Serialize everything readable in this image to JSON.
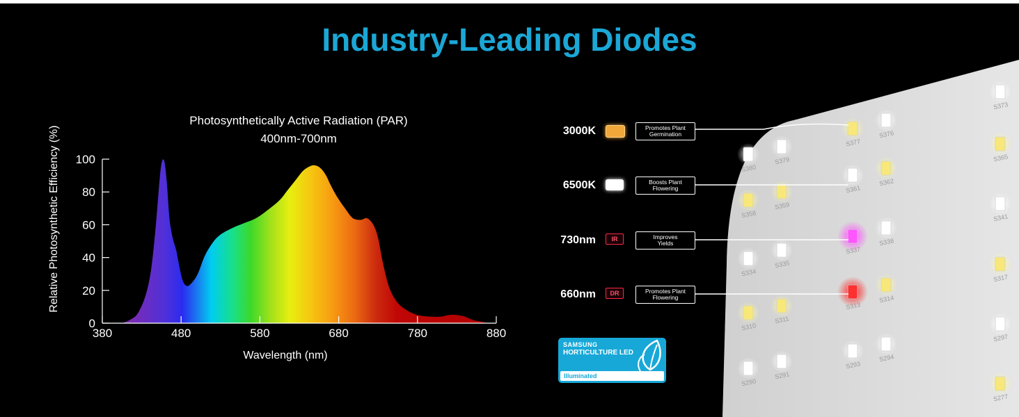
{
  "page": {
    "title": "Industry-Leading Diodes"
  },
  "chart_data": {
    "type": "area",
    "title": "Photosynthetically Active Radiation (PAR)",
    "subtitle": "400nm-700nm",
    "xlabel": "Wavelength (nm)",
    "ylabel": "Relative Photosynthetic Efficiency (%)",
    "xlim": [
      380,
      880
    ],
    "ylim": [
      0,
      100
    ],
    "xticks": [
      380,
      480,
      580,
      680,
      780,
      880
    ],
    "yticks": [
      0,
      20,
      40,
      60,
      80,
      100
    ],
    "x": [
      405,
      415,
      425,
      435,
      442,
      448,
      453,
      456,
      459,
      462,
      465,
      468,
      471,
      474,
      478,
      482,
      486,
      490,
      496,
      502,
      510,
      520,
      530,
      545,
      560,
      575,
      590,
      605,
      615,
      625,
      635,
      645,
      652,
      658,
      664,
      670,
      678,
      688,
      698,
      708,
      716,
      724,
      730,
      736,
      744,
      754,
      766,
      780,
      796,
      810,
      820,
      830,
      840,
      850,
      860,
      870
    ],
    "values": [
      0,
      2,
      6,
      17,
      33,
      60,
      89,
      99,
      98,
      85,
      65,
      55,
      49,
      44,
      34,
      26,
      23,
      23,
      26,
      31,
      41,
      49,
      54,
      58,
      61,
      64,
      69,
      75,
      81,
      87,
      93,
      96,
      96,
      94,
      90,
      84,
      77,
      70,
      64,
      63,
      64,
      60,
      52,
      37,
      22,
      13,
      8,
      5,
      4,
      4,
      5,
      5,
      4,
      2,
      1,
      0
    ]
  },
  "legend": [
    {
      "label": "3000K",
      "color": "#f0a83a",
      "description": [
        "Promotes Plant",
        "Germination"
      ]
    },
    {
      "label": "6500K",
      "color": "#ffffff",
      "description": [
        "Boosts Plant",
        "Flowering"
      ]
    },
    {
      "label": "730nm",
      "tag": "IR",
      "description": [
        "Improves",
        "Yields"
      ]
    },
    {
      "label": "660nm",
      "tag": "DR",
      "description": [
        "Promotes Plant",
        "Flowering"
      ]
    }
  ],
  "badge": {
    "line1": "SAMSUNG",
    "line2": "HORTICULTURE LED",
    "line3": "Illuminated",
    "color": "#18a8d8"
  },
  "board_labels": [
    "S373",
    "S365",
    "S341",
    "S317",
    "S297",
    "S277",
    "S380",
    "S379",
    "S377",
    "S376",
    "S361",
    "S362",
    "S358",
    "S359",
    "S337",
    "S338",
    "S334",
    "S335",
    "S313",
    "S314",
    "S310",
    "S311",
    "S293",
    "S294",
    "S290",
    "S291"
  ]
}
